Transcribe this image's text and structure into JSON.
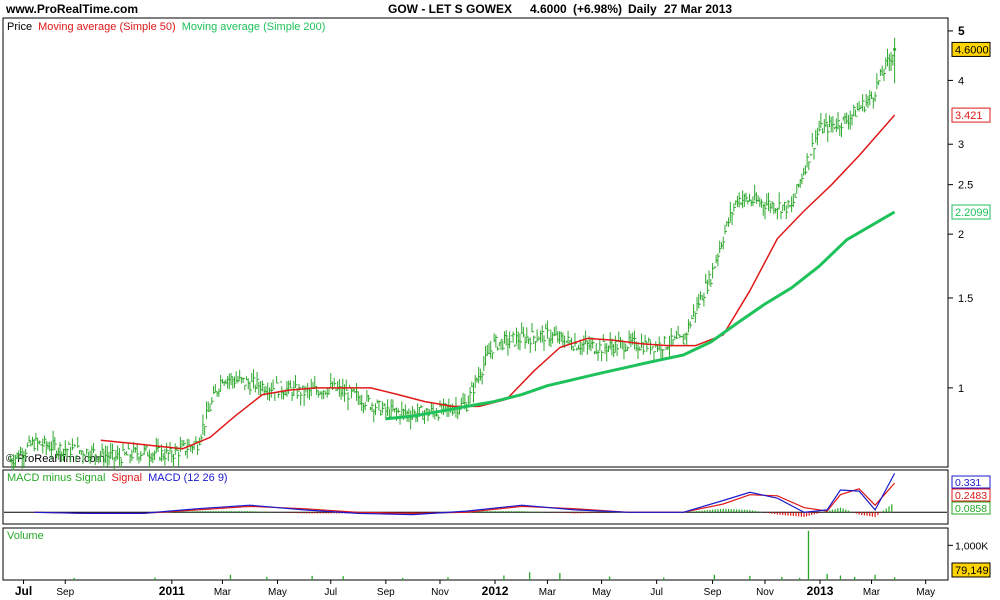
{
  "header": {
    "site": "www.ProRealTime.com",
    "instrument": "GOW - LET S GOWEX",
    "last": "4.6000",
    "change": "(+6.98%)",
    "period": "Daily",
    "date": "27 Mar 2013"
  },
  "watermark": "© ProRealTime.com",
  "colors": {
    "price": "#2ea82e",
    "ma50": "#e01818",
    "ma200": "#1ec25a",
    "macd": "#1a1acc",
    "signal": "#e01818",
    "histogram": "#27a827",
    "volume": "#27a827",
    "last_badge": "#ffd400"
  },
  "chart_data": [
    {
      "type": "line",
      "panel": "price",
      "title": "",
      "legend": [
        {
          "label": "Price",
          "color": "#000000"
        },
        {
          "label": "Moving average (Simple 50)",
          "color": "#e01818"
        },
        {
          "label": "Moving average (Simple 200)",
          "color": "#1ec25a"
        }
      ],
      "y_scale": "log",
      "ylim": [
        0.7,
        5.3
      ],
      "y_ticks": [
        "5",
        "4",
        "3",
        "2.5",
        "2",
        "1.5",
        "1"
      ],
      "y_tick_values": [
        5,
        4,
        3,
        2.5,
        2,
        1.5,
        1
      ],
      "x_tick_labels": [
        "Jul",
        "Sep",
        "2011",
        "Mar",
        "May",
        "Jul",
        "Sep",
        "Nov",
        "2012",
        "Mar",
        "May",
        "Jul",
        "Sep",
        "Nov",
        "2013",
        "Mar",
        "May"
      ],
      "x_tick_years": [
        true,
        false,
        true,
        false,
        false,
        false,
        false,
        false,
        true,
        false,
        false,
        false,
        false,
        false,
        true,
        false,
        false
      ],
      "value_badges": [
        {
          "label": "4.6000",
          "value": 4.6,
          "style": "last"
        },
        {
          "label": "3.421",
          "value": 3.421,
          "style": "ma50"
        },
        {
          "label": "2.2099",
          "value": 2.2099,
          "style": "ma200"
        }
      ],
      "series": [
        {
          "name": "Price",
          "x": [
            "2010-07-05",
            "2010-08-01",
            "2010-09-01",
            "2010-10-01",
            "2010-11-01",
            "2010-12-01",
            "2011-01-01",
            "2011-02-01",
            "2011-03-01",
            "2011-04-01",
            "2011-05-01",
            "2011-06-01",
            "2011-07-01",
            "2011-08-01",
            "2011-09-01",
            "2011-10-01",
            "2011-11-01",
            "2011-12-01",
            "2012-01-01",
            "2012-02-01",
            "2012-03-01",
            "2012-04-01",
            "2012-05-01",
            "2012-06-01",
            "2012-07-01",
            "2012-08-01",
            "2012-09-01",
            "2012-10-01",
            "2012-11-01",
            "2012-12-01",
            "2013-01-01",
            "2013-02-01",
            "2013-03-01",
            "2013-03-27"
          ],
          "values": [
            0.72,
            0.78,
            0.76,
            0.75,
            0.73,
            0.75,
            0.74,
            0.78,
            1.05,
            1.02,
            1.0,
            0.98,
            1.0,
            0.96,
            0.9,
            0.89,
            0.9,
            0.93,
            1.22,
            1.25,
            1.27,
            1.22,
            1.2,
            1.22,
            1.21,
            1.24,
            1.65,
            2.35,
            2.3,
            2.25,
            3.2,
            3.35,
            3.7,
            4.6
          ]
        },
        {
          "name": "Moving average (Simple 50)",
          "x": [
            "2010-10-15",
            "2010-11-15",
            "2010-12-15",
            "2011-01-15",
            "2011-02-15",
            "2011-03-15",
            "2011-04-15",
            "2011-05-15",
            "2011-06-15",
            "2011-07-15",
            "2011-08-15",
            "2011-09-15",
            "2011-10-15",
            "2011-11-15",
            "2011-12-15",
            "2012-01-15",
            "2012-02-15",
            "2012-03-15",
            "2012-04-15",
            "2012-05-15",
            "2012-06-15",
            "2012-07-15",
            "2012-08-15",
            "2012-09-15",
            "2012-10-15",
            "2012-11-15",
            "2012-12-15",
            "2013-01-15",
            "2013-02-15",
            "2013-03-27"
          ],
          "values": [
            0.79,
            0.78,
            0.77,
            0.76,
            0.8,
            0.88,
            0.97,
            0.99,
            1.0,
            1.0,
            1.0,
            0.97,
            0.94,
            0.92,
            0.92,
            0.95,
            1.08,
            1.2,
            1.25,
            1.24,
            1.22,
            1.21,
            1.21,
            1.27,
            1.55,
            1.96,
            2.22,
            2.5,
            2.85,
            3.421
          ]
        },
        {
          "name": "Moving average (Simple 200)",
          "x": [
            "2011-09-01",
            "2011-10-01",
            "2011-11-01",
            "2011-12-01",
            "2012-01-01",
            "2012-02-01",
            "2012-03-01",
            "2012-04-01",
            "2012-05-01",
            "2012-06-01",
            "2012-07-01",
            "2012-08-01",
            "2012-09-01",
            "2012-10-01",
            "2012-11-01",
            "2012-12-01",
            "2013-01-01",
            "2013-02-01",
            "2013-03-27"
          ],
          "values": [
            0.87,
            0.88,
            0.9,
            0.92,
            0.94,
            0.97,
            1.01,
            1.04,
            1.07,
            1.1,
            1.13,
            1.16,
            1.23,
            1.34,
            1.46,
            1.57,
            1.73,
            1.95,
            2.2099
          ]
        }
      ]
    },
    {
      "type": "line",
      "panel": "macd",
      "title": "",
      "legend": [
        {
          "label": "MACD minus Signal",
          "color": "#27a827"
        },
        {
          "label": "Signal",
          "color": "#e01818"
        },
        {
          "label": "MACD (12 26 9)",
          "color": "#1a1acc"
        }
      ],
      "ylim": [
        -0.1,
        0.36
      ],
      "value_badges": [
        {
          "label": "0.331",
          "value": 0.331,
          "style": "macd"
        },
        {
          "label": "0.2483",
          "value": 0.2483,
          "style": "signal"
        },
        {
          "label": "0.0858",
          "value": 0.0858,
          "style": "hist"
        }
      ],
      "series": [
        {
          "name": "MACD (12 26 9)",
          "x": [
            "2010-08-01",
            "2010-10-01",
            "2010-12-01",
            "2011-02-01",
            "2011-04-01",
            "2011-06-01",
            "2011-08-01",
            "2011-10-01",
            "2011-12-01",
            "2012-02-01",
            "2012-04-01",
            "2012-06-01",
            "2012-08-01",
            "2012-09-15",
            "2012-10-15",
            "2012-11-15",
            "2012-12-15",
            "2013-01-10",
            "2013-01-25",
            "2013-02-15",
            "2013-03-05",
            "2013-03-27"
          ],
          "values": [
            0.0,
            -0.01,
            -0.01,
            0.03,
            0.06,
            0.02,
            -0.01,
            -0.02,
            0.01,
            0.06,
            0.02,
            0.0,
            0.0,
            0.1,
            0.17,
            0.12,
            0.0,
            0.02,
            0.19,
            0.18,
            0.02,
            0.331
          ]
        },
        {
          "name": "Signal",
          "x": [
            "2010-08-01",
            "2010-10-01",
            "2010-12-01",
            "2011-02-01",
            "2011-04-01",
            "2011-06-01",
            "2011-08-01",
            "2011-10-01",
            "2011-12-01",
            "2012-02-01",
            "2012-04-01",
            "2012-06-01",
            "2012-08-01",
            "2012-09-15",
            "2012-10-15",
            "2012-11-15",
            "2012-12-15",
            "2013-01-10",
            "2013-01-25",
            "2013-02-15",
            "2013-03-05",
            "2013-03-27"
          ],
          "values": [
            0.0,
            -0.01,
            -0.01,
            0.02,
            0.05,
            0.03,
            0.0,
            -0.01,
            0.0,
            0.05,
            0.03,
            0.0,
            0.0,
            0.07,
            0.15,
            0.14,
            0.04,
            0.01,
            0.15,
            0.2,
            0.06,
            0.2483
          ]
        },
        {
          "name": "MACD minus Signal",
          "x": [
            "2010-08-01",
            "2010-10-01",
            "2010-12-01",
            "2011-02-01",
            "2011-04-01",
            "2011-06-01",
            "2011-08-01",
            "2011-10-01",
            "2011-12-01",
            "2012-02-01",
            "2012-04-01",
            "2012-06-01",
            "2012-08-01",
            "2012-09-15",
            "2012-10-15",
            "2012-11-15",
            "2012-12-15",
            "2013-01-10",
            "2013-01-25",
            "2013-02-15",
            "2013-03-05",
            "2013-03-27"
          ],
          "values": [
            0.0,
            0.0,
            0.0,
            0.01,
            0.01,
            -0.01,
            -0.01,
            -0.01,
            0.01,
            0.01,
            -0.01,
            0.0,
            0.0,
            0.03,
            0.02,
            -0.02,
            -0.04,
            0.01,
            0.04,
            -0.02,
            -0.04,
            0.0858
          ]
        }
      ]
    },
    {
      "type": "bar",
      "panel": "volume",
      "title": "",
      "legend": [
        {
          "label": "Volume",
          "color": "#27a827"
        }
      ],
      "ylim": [
        0,
        1500000
      ],
      "value_badges": [
        {
          "label": "1,000K",
          "value": 1000000,
          "style": "tick"
        },
        {
          "label": "79,149",
          "value": 79149,
          "style": "last"
        }
      ],
      "series": [
        {
          "name": "Volume",
          "x": [
            "2010-09-15",
            "2010-12-15",
            "2011-03-10",
            "2011-04-20",
            "2011-06-10",
            "2011-07-15",
            "2011-09-20",
            "2011-11-10",
            "2012-01-12",
            "2012-02-10",
            "2012-03-15",
            "2012-05-10",
            "2012-07-10",
            "2012-09-05",
            "2012-10-15",
            "2012-11-20",
            "2012-12-10",
            "2012-12-20",
            "2013-01-10",
            "2013-01-25",
            "2013-02-10",
            "2013-03-05",
            "2013-03-27"
          ],
          "values": [
            60000,
            70000,
            150000,
            90000,
            120000,
            110000,
            60000,
            80000,
            130000,
            220000,
            200000,
            100000,
            70000,
            150000,
            120000,
            90000,
            60000,
            1420000,
            180000,
            130000,
            90000,
            150000,
            79149
          ]
        }
      ]
    }
  ]
}
